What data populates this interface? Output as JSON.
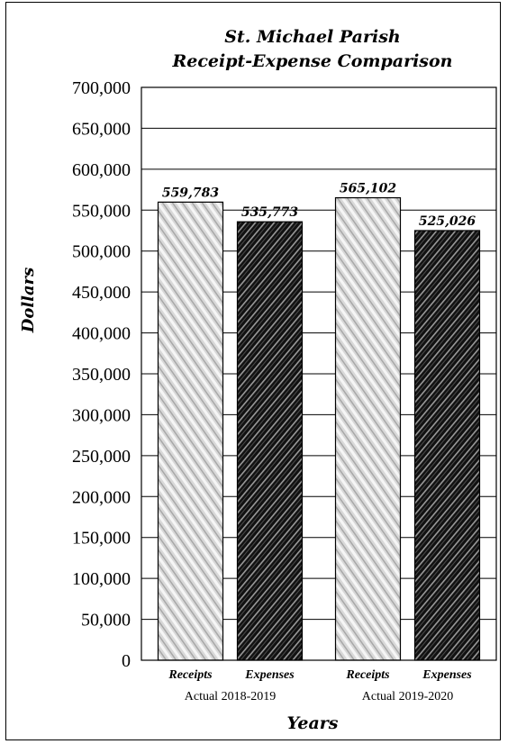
{
  "chart_data": {
    "type": "bar",
    "title_lines": [
      "St. Michael Parish",
      "Receipt-Expense Comparison"
    ],
    "ylabel": "Dollars",
    "xlabel": "Years",
    "ylim": [
      0,
      700000
    ],
    "yticks": [
      0,
      50000,
      100000,
      150000,
      200000,
      250000,
      300000,
      350000,
      400000,
      450000,
      500000,
      550000,
      600000,
      650000,
      700000
    ],
    "ytick_labels": [
      "0",
      "50,000",
      "100,000",
      "150,000",
      "200,000",
      "250,000",
      "300,000",
      "350,000",
      "400,000",
      "450,000",
      "500,000",
      "550,000",
      "600,000",
      "650,000",
      "700,000"
    ],
    "groups": [
      {
        "label": "Actual 2018-2019",
        "bars": [
          {
            "category": "Receipts",
            "value": 559783,
            "label": "559,783",
            "color": "#cfcfcf"
          },
          {
            "category": "Expenses",
            "value": 535773,
            "label": "535,773",
            "color": "#1a1a1a"
          }
        ]
      },
      {
        "label": "Actual 2019-2020",
        "bars": [
          {
            "category": "Receipts",
            "value": 565102,
            "label": "565,102",
            "color": "#cfcfcf"
          },
          {
            "category": "Expenses",
            "value": 525026,
            "label": "525,026",
            "color": "#1a1a1a"
          }
        ]
      }
    ],
    "grid": true,
    "legend": "none"
  }
}
